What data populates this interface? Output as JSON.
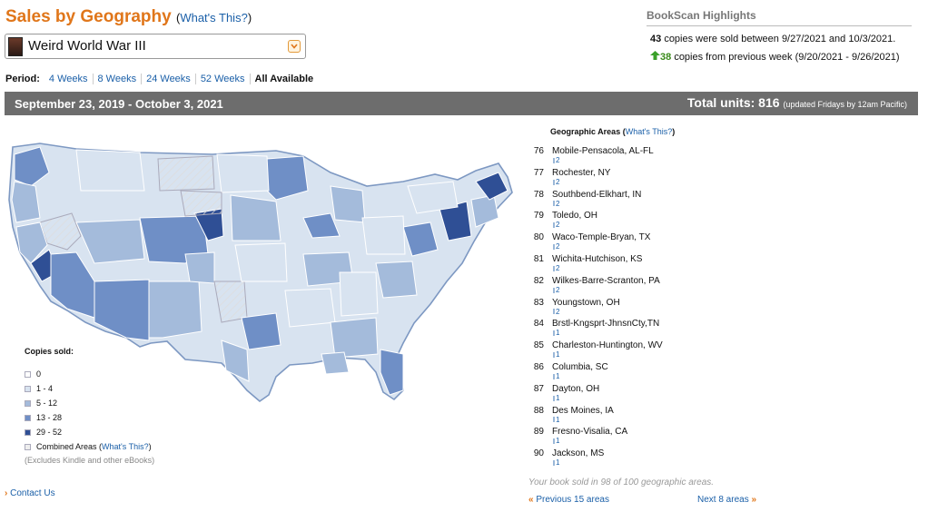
{
  "header": {
    "title": "Sales by Geography",
    "whats_this": "What's This?"
  },
  "book": {
    "title": "Weird World War III"
  },
  "period": {
    "label": "Period:",
    "options": [
      "4 Weeks",
      "8 Weeks",
      "24 Weeks",
      "52 Weeks",
      "All Available"
    ],
    "active": "All Available"
  },
  "highlights": {
    "title": "BookScan Highlights",
    "line1_num": "43",
    "line1_text": "copies were sold between 9/27/2021 and 10/3/2021.",
    "line2_num": "38",
    "line2_text": "copies from previous week (9/20/2021 - 9/26/2021)",
    "up_icon": "up-arrow-icon"
  },
  "band": {
    "date_range": "September 23, 2019 - October 3, 2021",
    "total_label": "Total units: 816",
    "total_note": "(updated Fridays by 12am Pacific)"
  },
  "legend": {
    "title": "Copies sold:",
    "items": [
      {
        "label": "0",
        "color": "#ffffff"
      },
      {
        "label": "1 - 4",
        "color": "#d8e3f0"
      },
      {
        "label": "5 - 12",
        "color": "#a4bbdb"
      },
      {
        "label": "13 - 28",
        "color": "#6f8fc6"
      },
      {
        "label": "29 - 52",
        "color": "#2f4f95"
      }
    ],
    "combined_label": "Combined Areas",
    "combined_link": "What's This?",
    "excludes": "(Excludes Kindle and other eBooks)"
  },
  "geo": {
    "title": "Geographic Areas",
    "whats_this": "What's This?",
    "areas": [
      {
        "rank": "76",
        "name": "Mobile-Pensacola, AL-FL",
        "count": "2"
      },
      {
        "rank": "77",
        "name": "Rochester, NY",
        "count": "2"
      },
      {
        "rank": "78",
        "name": "Southbend-Elkhart, IN",
        "count": "2"
      },
      {
        "rank": "79",
        "name": "Toledo, OH",
        "count": "2"
      },
      {
        "rank": "80",
        "name": "Waco-Temple-Bryan, TX",
        "count": "2"
      },
      {
        "rank": "81",
        "name": "Wichita-Hutchison, KS",
        "count": "2"
      },
      {
        "rank": "82",
        "name": "Wilkes-Barre-Scranton, PA",
        "count": "2"
      },
      {
        "rank": "83",
        "name": "Youngstown, OH",
        "count": "2"
      },
      {
        "rank": "84",
        "name": "Brstl-Kngsprt-JhnsnCty,TN",
        "count": "1"
      },
      {
        "rank": "85",
        "name": "Charleston-Huntington, WV",
        "count": "1"
      },
      {
        "rank": "86",
        "name": "Columbia, SC",
        "count": "1"
      },
      {
        "rank": "87",
        "name": "Dayton, OH",
        "count": "1"
      },
      {
        "rank": "88",
        "name": "Des Moines, IA",
        "count": "1"
      },
      {
        "rank": "89",
        "name": "Fresno-Visalia, CA",
        "count": "1"
      },
      {
        "rank": "90",
        "name": "Jackson, MS",
        "count": "1"
      }
    ],
    "sold_note": "Your book sold in 98 of 100 geographic areas.",
    "prev": "Previous 15 areas",
    "next": "Next 8 areas"
  },
  "footer": {
    "contact": "Contact Us"
  }
}
